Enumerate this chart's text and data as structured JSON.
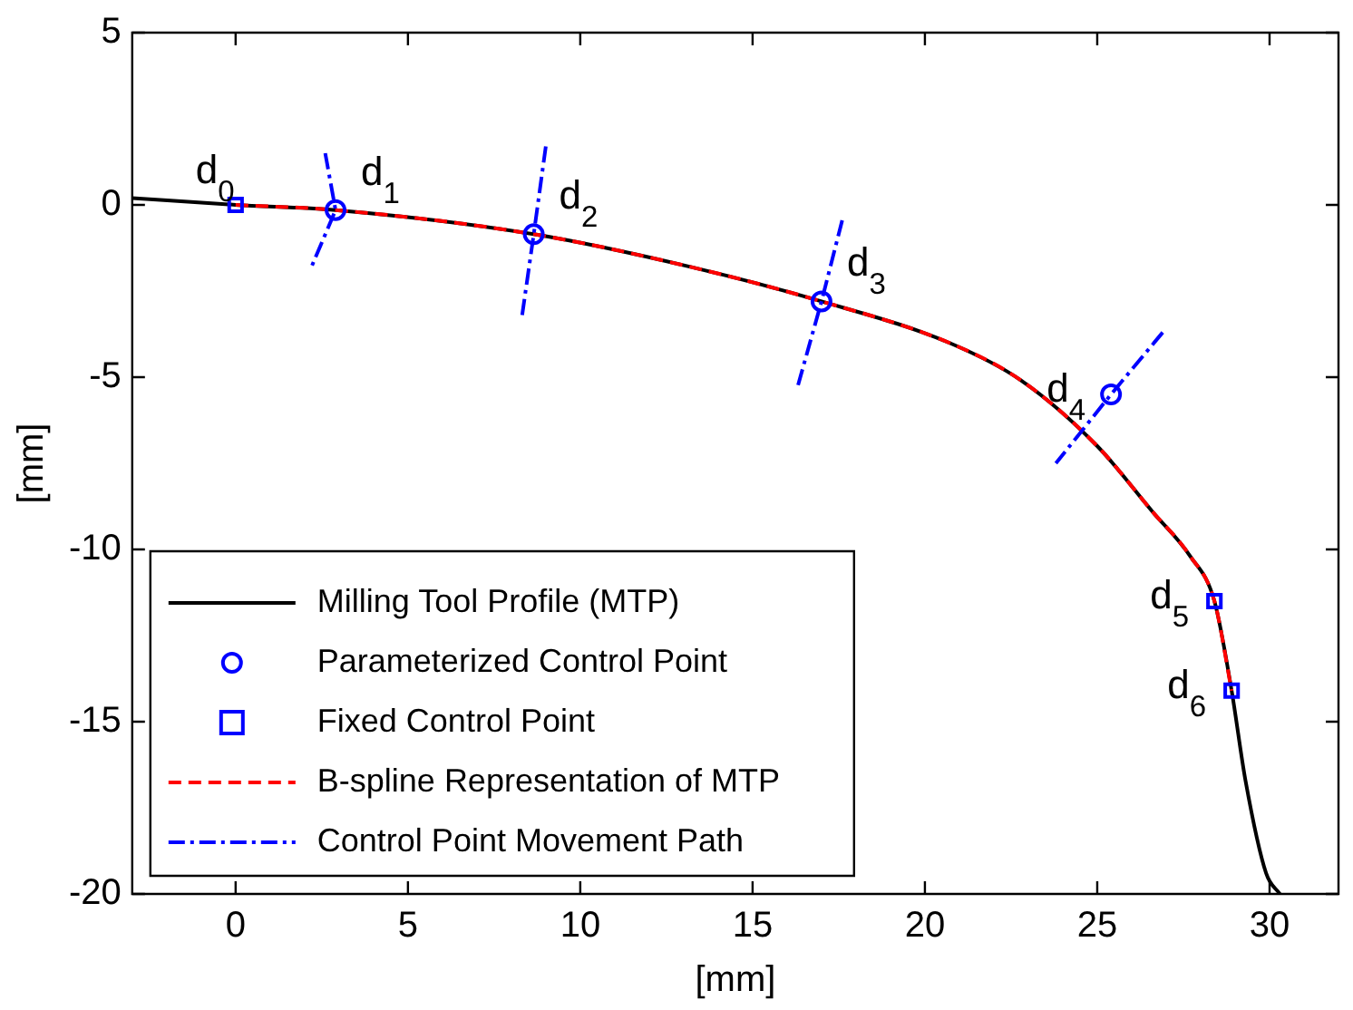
{
  "chart_data": {
    "type": "line",
    "xlabel": "[mm]",
    "ylabel": "[mm]",
    "xlim": [
      -3,
      32
    ],
    "xticks": [
      0,
      5,
      10,
      15,
      20,
      25,
      30
    ],
    "ylim": [
      -20,
      5
    ],
    "yticks": [
      -20,
      -15,
      -10,
      -5,
      0,
      5
    ],
    "grid": false,
    "legend": "bottom left",
    "series": [
      {
        "name": "Milling Tool Profile (MTP)",
        "color": "#000000",
        "line_style": "solid",
        "marker": "none",
        "x": [
          -3,
          0,
          2.9,
          8.65,
          13.2,
          17,
          20.7,
          22.8,
          25,
          26.6,
          27.7,
          28.4,
          28.9,
          29.3,
          29.9,
          30.3
        ],
        "values": [
          0.2,
          0,
          -0.15,
          -0.85,
          -1.8,
          -2.8,
          -4.0,
          -5.1,
          -7.0,
          -8.9,
          -10.2,
          -11.5,
          -14.1,
          -16.7,
          -19.4,
          -20
        ]
      },
      {
        "name": "Parameterized Control Point",
        "type": "scatter",
        "color": "#0000ff",
        "marker": "circle",
        "x": [
          2.9,
          8.65,
          17,
          25.4
        ],
        "values": [
          -0.15,
          -0.85,
          -2.8,
          -5.5
        ]
      },
      {
        "name": "Fixed Control Point",
        "type": "scatter",
        "color": "#0000ff",
        "marker": "square",
        "x": [
          0,
          28.4,
          28.9
        ],
        "values": [
          0,
          -11.5,
          -14.1
        ]
      },
      {
        "name": "B-spline Representation of MTP",
        "color": "#ff0000",
        "line_style": "dashed",
        "marker": "none",
        "x": [
          0,
          2.9,
          8.65,
          13.2,
          17,
          20.7,
          22.8,
          25,
          26.6,
          27.7,
          28.4,
          28.9
        ],
        "values": [
          0,
          -0.15,
          -0.85,
          -1.8,
          -2.8,
          -4.0,
          -5.1,
          -7.0,
          -8.9,
          -10.2,
          -11.5,
          -14.1
        ]
      },
      {
        "name": "Control Point Movement Path",
        "color": "#0000ff",
        "line_style": "dashdot",
        "marker": "none",
        "x": [
          2.6,
          2.9,
          2.2
        ],
        "values": [
          1.5,
          -0.15,
          -1.8
        ]
      },
      {
        "color": "#0000ff",
        "line_style": "dashdot",
        "marker": "none",
        "x": [
          9.0,
          8.65,
          8.3
        ],
        "values": [
          1.7,
          -0.85,
          -3.3
        ]
      },
      {
        "color": "#0000ff",
        "line_style": "dashdot",
        "marker": "none",
        "x": [
          17.6,
          17,
          16.3
        ],
        "values": [
          -0.45,
          -2.8,
          -5.3
        ]
      },
      {
        "color": "#0000ff",
        "line_style": "dashdot",
        "marker": "none",
        "x": [
          26.9,
          25.4,
          23.8
        ],
        "values": [
          -3.7,
          -5.5,
          -7.5
        ]
      }
    ],
    "annotations": [
      {
        "text": "d$_{0}$",
        "x": 0,
        "y": 0
      },
      {
        "text": "d$_{1}$",
        "x": 2.9,
        "y": -0.15
      },
      {
        "text": "d$_{2}$",
        "x": 8.65,
        "y": -0.85
      },
      {
        "text": "d$_{3}$",
        "x": 17,
        "y": -2.8
      },
      {
        "text": "d$_{4}$",
        "x": 25.4,
        "y": -5.5
      },
      {
        "text": "d$_{5}$",
        "x": 28.4,
        "y": -11.5
      },
      {
        "text": "d$_{6}$",
        "x": 28.9,
        "y": -14.1
      }
    ]
  }
}
